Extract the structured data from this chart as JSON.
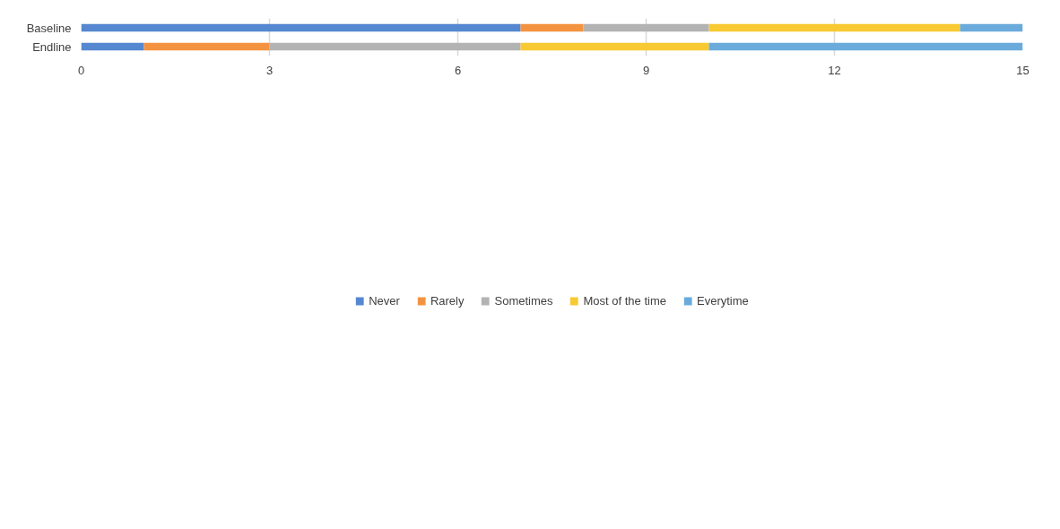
{
  "chart_data": {
    "type": "bar",
    "orientation": "horizontal",
    "stacked": true,
    "categories": [
      "Baseline",
      "Endline"
    ],
    "series": [
      {
        "name": "Never",
        "color": "#5588d0",
        "values": [
          7,
          1
        ]
      },
      {
        "name": "Rarely",
        "color": "#f39340",
        "values": [
          1,
          2
        ]
      },
      {
        "name": "Sometimes",
        "color": "#b3b3b3",
        "values": [
          2,
          4
        ]
      },
      {
        "name": "Most of the time",
        "color": "#f8c932",
        "values": [
          4,
          3
        ]
      },
      {
        "name": "Everytime",
        "color": "#6aabdc",
        "values": [
          1,
          5
        ]
      }
    ],
    "xlim": [
      0,
      15
    ],
    "xticks": [
      0,
      3,
      6,
      9,
      12,
      15
    ],
    "grid": "x",
    "legend": "bottom"
  }
}
